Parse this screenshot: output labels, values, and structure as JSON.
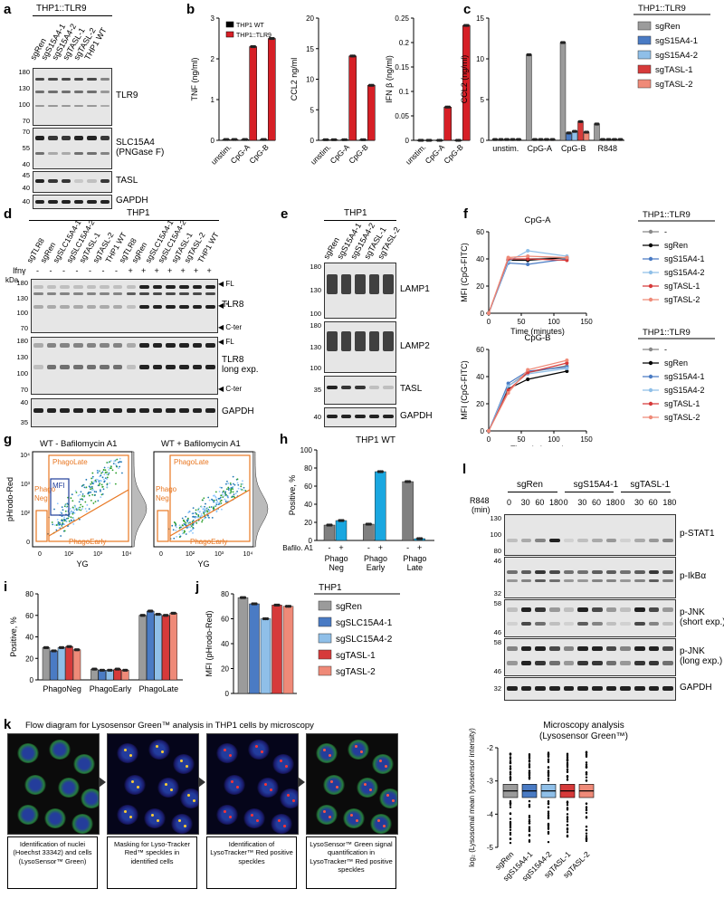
{
  "panels": {
    "a": {
      "letter": "a",
      "header": "THP1::TLR9",
      "lanes": [
        "sgRen",
        "sgS15A4-1",
        "sgS15A4-2",
        "sgTASL-1",
        "sgTASL-2",
        "THP1 WT"
      ],
      "blots": [
        {
          "label": "TLR9",
          "mw": [
            "180",
            "130",
            "100",
            "70"
          ]
        },
        {
          "label": "SLC15A4",
          "label2": "(PNGase F)",
          "mw": [
            "70",
            "55",
            "40"
          ]
        },
        {
          "label": "TASL",
          "mw": [
            "45",
            "40"
          ]
        },
        {
          "label": "GAPDH",
          "mw": [
            "40"
          ]
        }
      ]
    },
    "b": {
      "letter": "b",
      "legend": [
        "THP1 WT",
        "THP1::TLR9"
      ]
    },
    "c": {
      "letter": "c",
      "header": "THP1::TLR9",
      "legend": [
        "sgRen",
        "sgS15A4-1",
        "sgS15A4-2",
        "sgTASL-1",
        "sgTASL-2"
      ]
    },
    "d": {
      "letter": "d",
      "header": "THP1",
      "lanes": [
        "sgTLR8",
        "sgRen",
        "sgSLC15A4-1",
        "sgSLC15A4-2",
        "sgTASL-1",
        "sgTASL-2",
        "THP1 WT",
        "sgTLR8",
        "sgRen",
        "sgSLC15A4-1",
        "sgSLC15A4-2",
        "sgTASL-1",
        "sgTASL-2",
        "THP1 WT"
      ],
      "ifny_label": "Ifnγ",
      "kda_label": "kDa",
      "ifny": [
        "-",
        "-",
        "-",
        "-",
        "-",
        "-",
        "-",
        "+",
        "+",
        "+",
        "+",
        "+",
        "+",
        "+"
      ],
      "blots": [
        {
          "label": "TLR8",
          "mw": [
            "180",
            "130",
            "100",
            "70"
          ],
          "marks": [
            "FL",
            "*",
            "C-ter"
          ]
        },
        {
          "label": "TLR8",
          "label2": "long exp.",
          "mw": [
            "180",
            "130",
            "100",
            "70"
          ],
          "marks": [
            "FL",
            "C-ter"
          ]
        },
        {
          "label": "GAPDH",
          "mw": [
            "40",
            "35"
          ]
        }
      ]
    },
    "e": {
      "letter": "e",
      "header": "THP1",
      "lanes": [
        "sgRen",
        "sgS15A4-1",
        "sgS15A4-2",
        "sgTASL-1",
        "sgTASL-2"
      ],
      "blots": [
        {
          "label": "LAMP1",
          "mw": [
            "180",
            "130",
            "100"
          ]
        },
        {
          "label": "LAMP2",
          "mw": [
            "180",
            "130",
            "100"
          ]
        },
        {
          "label": "TASL",
          "mw": [
            "35"
          ]
        },
        {
          "label": "GAPDH",
          "mw": [
            "40"
          ]
        }
      ]
    },
    "f": {
      "letter": "f",
      "header": "THP1::TLR9",
      "legend": [
        "-",
        "sgRen",
        "sgS15A4-1",
        "sgS15A4-2",
        "sgTASL-1",
        "sgTASL-2"
      ]
    },
    "g": {
      "letter": "g",
      "plots": [
        {
          "title": "WT - Bafilomycin A1",
          "gates": [
            "PhagoLate",
            "Phago",
            "Neg",
            "MFI",
            "PhagoEarly"
          ]
        },
        {
          "title": "WT + Bafilomycin A1",
          "gates": [
            "PhagoLate",
            "Phago",
            "Neg.",
            "PhagoEarly"
          ]
        }
      ],
      "xlabel": "YG",
      "ylabel": "pHrodo-Red",
      "xticks": [
        "0",
        "10²",
        "10³",
        "10⁴"
      ],
      "yticks": [
        "10⁴",
        "10³",
        "10²",
        "0"
      ]
    },
    "h": {
      "letter": "h",
      "baf_label": "Bafilo. A1",
      "baf_signs": [
        "-",
        "+",
        "-",
        "+",
        "-",
        "+"
      ]
    },
    "i": {
      "letter": "i"
    },
    "j": {
      "letter": "j",
      "header": "THP1",
      "legend": [
        "sgRen",
        "sgSLC15A4-1",
        "sgSLC15A4-2",
        "sgTASL-1",
        "sgTASL-2"
      ]
    },
    "k": {
      "letter": "k",
      "title": "Flow diagram for Lysosensor Green™ analysis in THP1 cells by microscopy",
      "captions": [
        "Identification of nuclei (Hoechst 33342) and cells (LysoSensor™ Green)",
        "Masking for Lyso-Tracker Red™ speckles in identified cells",
        "Identification of LysoTracker™ Red positive speckles",
        "LysoSensor™ Green signal quantification in LysoTracker™ Red positive speckles"
      ]
    },
    "l": {
      "letter": "l",
      "groups": [
        "sgRen",
        "sgS15A4-1",
        "sgTASL-1"
      ],
      "r848_label": "R848",
      "min_label": "(min)",
      "times": [
        "0",
        "30",
        "60",
        "180",
        "0",
        "30",
        "60",
        "180",
        "0",
        "30",
        "60",
        "180"
      ],
      "blots": [
        {
          "label": "p-STAT1",
          "mw": [
            "130",
            "100",
            "80"
          ]
        },
        {
          "label": "p-IkBα",
          "mw": [
            "46",
            "32"
          ]
        },
        {
          "label": "p-JNK",
          "label2": "(short exp.)",
          "mw": [
            "58",
            "46"
          ]
        },
        {
          "label": "p-JNK",
          "label2": "(long exp.)",
          "mw": [
            "58",
            "46"
          ]
        },
        {
          "label": "GAPDH",
          "mw": [
            "32"
          ]
        }
      ]
    }
  },
  "chart_data": [
    {
      "id": "b-TNF",
      "type": "bar",
      "categories": [
        "unstim.",
        "CpG-A",
        "CpG-B"
      ],
      "series": [
        {
          "name": "THP1 WT",
          "values": [
            0.02,
            0.02,
            0.02
          ]
        },
        {
          "name": "THP1::TLR9",
          "values": [
            0.02,
            2.3,
            2.5
          ]
        }
      ],
      "ylabel": "TNF (ng/ml)",
      "ylim": [
        0,
        3
      ],
      "yticks": [
        0,
        1,
        2,
        3
      ]
    },
    {
      "id": "b-CCL2",
      "type": "bar",
      "categories": [
        "unstim.",
        "CpG-A",
        "CpG-B"
      ],
      "series": [
        {
          "name": "THP1 WT",
          "values": [
            0.1,
            0.1,
            0.1
          ]
        },
        {
          "name": "THP1::TLR9",
          "values": [
            0.1,
            13.8,
            9.0
          ]
        }
      ],
      "ylabel": "CCL2 ng/ml",
      "ylim": [
        0,
        20
      ],
      "yticks": [
        0,
        5,
        10,
        15,
        20
      ]
    },
    {
      "id": "b-IFNb",
      "type": "bar",
      "categories": [
        "unstim.",
        "CpG-A",
        "CpG-B"
      ],
      "series": [
        {
          "name": "THP1 WT",
          "values": [
            0.0,
            0.0,
            0.0
          ]
        },
        {
          "name": "THP1::TLR9",
          "values": [
            0.0,
            0.068,
            0.235
          ]
        }
      ],
      "ylabel": "IFN β (ng/ml)",
      "ylim": [
        0,
        0.25
      ],
      "yticks": [
        0,
        0.05,
        0.1,
        0.15,
        0.2,
        0.25
      ]
    },
    {
      "id": "c",
      "type": "bar",
      "categories": [
        "unstim.",
        "CpG-A",
        "CpG-B",
        "R848"
      ],
      "series": [
        {
          "name": "sgRen",
          "values": [
            0.1,
            10.5,
            12.0,
            2.0
          ]
        },
        {
          "name": "sgS15A4-1",
          "values": [
            0.1,
            0.1,
            0.9,
            0.1
          ]
        },
        {
          "name": "sgS15A4-2",
          "values": [
            0.1,
            0.1,
            1.1,
            0.1
          ]
        },
        {
          "name": "sgTASL-1",
          "values": [
            0.1,
            0.1,
            2.3,
            0.1
          ]
        },
        {
          "name": "sgTASL-2",
          "values": [
            0.1,
            0.1,
            1.0,
            0.1
          ]
        }
      ],
      "ylabel": "CCL2 (ng/ml)",
      "ylim": [
        0,
        15
      ],
      "yticks": [
        0,
        5,
        10,
        15
      ],
      "colors": [
        "#9b9b9b",
        "#4a7bc4",
        "#8fbfe8",
        "#d63a3a",
        "#ef8a78"
      ]
    },
    {
      "id": "f-CpGA",
      "type": "line",
      "title": "CpG-A",
      "x": [
        0,
        30,
        60,
        120
      ],
      "series": [
        {
          "name": "-",
          "values": [
            0,
            39,
            40,
            41
          ]
        },
        {
          "name": "sgRen",
          "values": [
            0,
            39,
            39,
            41
          ]
        },
        {
          "name": "sgS15A4-1",
          "values": [
            0,
            37,
            36,
            40
          ]
        },
        {
          "name": "sgS15A4-2",
          "values": [
            0,
            38,
            46,
            42
          ]
        },
        {
          "name": "sgTASL-1",
          "values": [
            0,
            40,
            40,
            39
          ]
        },
        {
          "name": "sgTASL-2",
          "values": [
            0,
            41,
            42,
            41
          ]
        }
      ],
      "xlabel": "Time (minutes)",
      "ylabel": "MFI (CpG-FITC)",
      "xlim": [
        0,
        150
      ],
      "ylim": [
        0,
        60
      ],
      "xticks": [
        0,
        50,
        100,
        150
      ],
      "yticks": [
        0,
        20,
        40,
        60
      ],
      "colors": [
        "#888888",
        "#000000",
        "#4a7bc4",
        "#8fbfe8",
        "#d63a3a",
        "#ef8a78"
      ]
    },
    {
      "id": "f-CpGB",
      "type": "line",
      "title": "CpG-B",
      "x": [
        0,
        30,
        60,
        120
      ],
      "series": [
        {
          "name": "-",
          "values": [
            0,
            33,
            43,
            48
          ]
        },
        {
          "name": "sgRen",
          "values": [
            0,
            31,
            38,
            44
          ]
        },
        {
          "name": "sgS15A4-1",
          "values": [
            0,
            35,
            44,
            47
          ]
        },
        {
          "name": "sgS15A4-2",
          "values": [
            0,
            33,
            42,
            46
          ]
        },
        {
          "name": "sgTASL-1",
          "values": [
            0,
            30,
            43,
            50
          ]
        },
        {
          "name": "sgTASL-2",
          "values": [
            0,
            28,
            45,
            52
          ]
        }
      ],
      "xlabel": "Time (minutes)",
      "ylabel": "MFI (CpG-FITC)",
      "xlim": [
        0,
        150
      ],
      "ylim": [
        0,
        60
      ],
      "xticks": [
        0,
        50,
        100,
        150
      ],
      "yticks": [
        0,
        20,
        40,
        60
      ],
      "colors": [
        "#888888",
        "#000000",
        "#4a7bc4",
        "#8fbfe8",
        "#d63a3a",
        "#ef8a78"
      ]
    },
    {
      "id": "h",
      "type": "bar",
      "title": "THP1 WT",
      "categories": [
        "Phago Neg",
        "Phago Early",
        "Phago Late"
      ],
      "series": [
        {
          "name": "-",
          "values": [
            17,
            18,
            65
          ]
        },
        {
          "name": "+",
          "values": [
            22,
            76,
            2
          ]
        }
      ],
      "ylabel": "Positive, %",
      "ylim": [
        0,
        100
      ],
      "yticks": [
        0,
        20,
        40,
        60,
        80,
        100
      ],
      "colors": [
        "#808080",
        "#1aa7e0"
      ]
    },
    {
      "id": "i",
      "type": "bar",
      "categories": [
        "PhagoNeg",
        "PhagoEarly",
        "PhagoLate"
      ],
      "series": [
        {
          "name": "sgRen",
          "values": [
            30,
            10,
            60
          ]
        },
        {
          "name": "sgSLC15A4-1",
          "values": [
            27,
            9,
            64
          ]
        },
        {
          "name": "sgSLC15A4-2",
          "values": [
            30,
            9,
            61
          ]
        },
        {
          "name": "sgTASL-1",
          "values": [
            31,
            10,
            60
          ]
        },
        {
          "name": "sgTASL-2",
          "values": [
            28,
            9,
            62
          ]
        }
      ],
      "ylabel": "Positive, %",
      "ylim": [
        0,
        80
      ],
      "yticks": [
        0,
        20,
        40,
        60,
        80
      ],
      "colors": [
        "#9b9b9b",
        "#4a7bc4",
        "#8fbfe8",
        "#d63a3a",
        "#ef8a78"
      ]
    },
    {
      "id": "j",
      "type": "bar",
      "categories": [
        "sgRen",
        "sgSLC15A4-1",
        "sgSLC15A4-2",
        "sgTASL-1",
        "sgTASL-2"
      ],
      "values": [
        77,
        72,
        60,
        71,
        70
      ],
      "ylabel": "MFI (pHrodo-Red)",
      "ylim": [
        0,
        80
      ],
      "yticks": [
        0,
        20,
        40,
        60,
        80
      ],
      "colors": [
        "#9b9b9b",
        "#4a7bc4",
        "#8fbfe8",
        "#d63a3a",
        "#ef8a78"
      ]
    },
    {
      "id": "k-box",
      "type": "box",
      "title": "Microscopy analysis",
      "subtitle": "(Lysosensor Green™)",
      "categories": [
        "sgRen",
        "sgS15A4-1",
        "sgS15A4-2",
        "sgTASL-1",
        "sgTASL-2"
      ],
      "medians": [
        -3.3,
        -3.3,
        -3.3,
        -3.3,
        -3.3
      ],
      "q1": [
        -3.5,
        -3.5,
        -3.5,
        -3.5,
        -3.5
      ],
      "q3": [
        -3.1,
        -3.1,
        -3.1,
        -3.1,
        -3.1
      ],
      "ylabel": "log₂ (Lysosomal mean lysosensor intensity)",
      "ylim": [
        -5,
        -2
      ],
      "yticks": [
        -2,
        -3,
        -4,
        -5
      ],
      "colors": [
        "#9b9b9b",
        "#4a7bc4",
        "#8fbfe8",
        "#d63a3a",
        "#ef8a78"
      ]
    }
  ]
}
